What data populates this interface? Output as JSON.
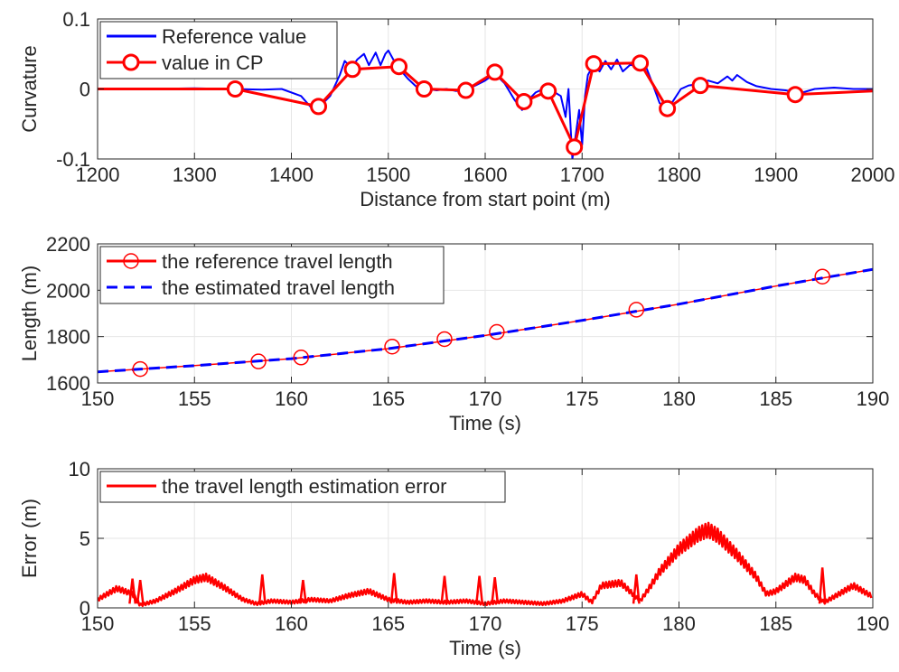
{
  "colors": {
    "blue": "#0000ff",
    "red": "#ff0000",
    "axis": "#262626",
    "grid": "#e6e6e6"
  },
  "chart_data": [
    {
      "type": "line",
      "xlabel": "Distance from start point (m)",
      "ylabel": "Curvature",
      "xlim": [
        1200,
        2000
      ],
      "ylim": [
        -0.1,
        0.1
      ],
      "xticks": [
        1200,
        1300,
        1400,
        1500,
        1600,
        1700,
        1800,
        1900,
        2000
      ],
      "yticks": [
        -0.1,
        0,
        0.1
      ],
      "ytick_labels": [
        "-0.1",
        "0",
        "0.1"
      ],
      "grid": true,
      "legend": "top-left",
      "series": [
        {
          "name": "Reference value",
          "color": "#0000ff",
          "style": "solid",
          "points": [
            [
              1200,
              0.0
            ],
            [
              1250,
              0.0
            ],
            [
              1300,
              0.001
            ],
            [
              1340,
              0.0
            ],
            [
              1370,
              -0.001
            ],
            [
              1390,
              0.0
            ],
            [
              1410,
              -0.01
            ],
            [
              1420,
              -0.026
            ],
            [
              1430,
              -0.024
            ],
            [
              1440,
              -0.01
            ],
            [
              1450,
              0.02
            ],
            [
              1455,
              0.04
            ],
            [
              1462,
              0.03
            ],
            [
              1468,
              0.042
            ],
            [
              1475,
              0.05
            ],
            [
              1480,
              0.034
            ],
            [
              1487,
              0.052
            ],
            [
              1492,
              0.034
            ],
            [
              1497,
              0.05
            ],
            [
              1500,
              0.055
            ],
            [
              1506,
              0.04
            ],
            [
              1512,
              0.028
            ],
            [
              1520,
              0.015
            ],
            [
              1530,
              0.002
            ],
            [
              1540,
              0.0
            ],
            [
              1550,
              -0.002
            ],
            [
              1560,
              0.0
            ],
            [
              1570,
              -0.003
            ],
            [
              1580,
              -0.001
            ],
            [
              1590,
              0.005
            ],
            [
              1600,
              0.012
            ],
            [
              1610,
              0.022
            ],
            [
              1620,
              0.008
            ],
            [
              1630,
              -0.015
            ],
            [
              1638,
              -0.03
            ],
            [
              1645,
              -0.015
            ],
            [
              1652,
              -0.005
            ],
            [
              1660,
              0.0
            ],
            [
              1665,
              -0.003
            ],
            [
              1672,
              -0.005
            ],
            [
              1678,
              -0.01
            ],
            [
              1683,
              -0.04
            ],
            [
              1686,
              0.0
            ],
            [
              1690,
              -0.1
            ],
            [
              1694,
              -0.06
            ],
            [
              1697,
              -0.03
            ],
            [
              1700,
              -0.08
            ],
            [
              1703,
              -0.01
            ],
            [
              1706,
              0.02
            ],
            [
              1712,
              0.035
            ],
            [
              1718,
              0.025
            ],
            [
              1724,
              0.04
            ],
            [
              1730,
              0.028
            ],
            [
              1736,
              0.042
            ],
            [
              1742,
              0.025
            ],
            [
              1750,
              0.035
            ],
            [
              1758,
              0.03
            ],
            [
              1765,
              0.035
            ],
            [
              1772,
              0.01
            ],
            [
              1780,
              -0.02
            ],
            [
              1788,
              -0.03
            ],
            [
              1795,
              -0.015
            ],
            [
              1802,
              0.0
            ],
            [
              1810,
              0.005
            ],
            [
              1820,
              0.007
            ],
            [
              1830,
              0.012
            ],
            [
              1840,
              0.008
            ],
            [
              1850,
              0.018
            ],
            [
              1855,
              0.012
            ],
            [
              1860,
              0.02
            ],
            [
              1870,
              0.01
            ],
            [
              1880,
              0.004
            ],
            [
              1895,
              0.0
            ],
            [
              1910,
              -0.002
            ],
            [
              1925,
              -0.006
            ],
            [
              1940,
              0.0
            ],
            [
              1960,
              0.002
            ],
            [
              1980,
              0.0
            ],
            [
              2000,
              0.0
            ]
          ]
        },
        {
          "name": "value in CP",
          "color": "#ff0000",
          "style": "solid",
          "marker": "circle",
          "points": [
            [
              1200,
              0.0
            ],
            [
              1342,
              0.0
            ],
            [
              1428,
              -0.025
            ],
            [
              1463,
              0.028
            ],
            [
              1511,
              0.032
            ],
            [
              1537,
              0.0
            ],
            [
              1580,
              -0.002
            ],
            [
              1610,
              0.024
            ],
            [
              1640,
              -0.018
            ],
            [
              1665,
              -0.003
            ],
            [
              1692,
              -0.083
            ],
            [
              1712,
              0.036
            ],
            [
              1760,
              0.037
            ],
            [
              1788,
              -0.028
            ],
            [
              1822,
              0.005
            ],
            [
              1920,
              -0.008
            ],
            [
              2000,
              -0.003
            ]
          ],
          "marker_x": [
            1342,
            1428,
            1463,
            1511,
            1537,
            1580,
            1610,
            1640,
            1665,
            1692,
            1712,
            1760,
            1788,
            1822,
            1920
          ]
        }
      ]
    },
    {
      "type": "line",
      "xlabel": "Time (s)",
      "ylabel": "Length (m)",
      "xlim": [
        150,
        190
      ],
      "ylim": [
        1600,
        2200
      ],
      "xticks": [
        150,
        155,
        160,
        165,
        170,
        175,
        180,
        185,
        190
      ],
      "yticks": [
        1600,
        1800,
        2000,
        2200
      ],
      "ytick_labels": [
        "1600",
        "1800",
        "2000",
        "2200"
      ],
      "grid": true,
      "legend": "top-left",
      "series": [
        {
          "name": "the reference travel length",
          "color": "#ff0000",
          "style": "solid",
          "marker": "circle",
          "points": [
            [
              150,
              1648
            ],
            [
              155,
              1675
            ],
            [
              160,
              1705
            ],
            [
              165,
              1748
            ],
            [
              170,
              1805
            ],
            [
              175,
              1870
            ],
            [
              180,
              1940
            ],
            [
              185,
              2018
            ],
            [
              190,
              2090
            ]
          ],
          "markers": [
            [
              152.2,
              1660
            ],
            [
              158.3,
              1693
            ],
            [
              160.5,
              1710
            ],
            [
              165.2,
              1757
            ],
            [
              167.9,
              1789
            ],
            [
              170.6,
              1820
            ],
            [
              177.8,
              1916
            ],
            [
              187.4,
              2059
            ]
          ]
        },
        {
          "name": "the estimated travel length",
          "color": "#0000ff",
          "style": "dashed",
          "points": [
            [
              150,
              1648
            ],
            [
              155,
              1675
            ],
            [
              160,
              1705
            ],
            [
              165,
              1748
            ],
            [
              170,
              1805
            ],
            [
              175,
              1870
            ],
            [
              180,
              1940
            ],
            [
              185,
              2018
            ],
            [
              190,
              2090
            ]
          ]
        }
      ]
    },
    {
      "type": "line",
      "xlabel": "Time (s)",
      "ylabel": "Error (m)",
      "xlim": [
        150,
        190
      ],
      "ylim": [
        0,
        10
      ],
      "xticks": [
        150,
        155,
        160,
        165,
        170,
        175,
        180,
        185,
        190
      ],
      "yticks": [
        0,
        5,
        10
      ],
      "ytick_labels": [
        "0",
        "5",
        "10"
      ],
      "grid": true,
      "legend": "top-left",
      "series": [
        {
          "name": "the travel length estimation error",
          "color": "#ff0000",
          "style": "solid",
          "envelope": [
            [
              150,
              0.6
            ],
            [
              151,
              1.4
            ],
            [
              151.8,
              1.0
            ],
            [
              152.2,
              0.2
            ],
            [
              153,
              0.5
            ],
            [
              154,
              1.2
            ],
            [
              155,
              2.0
            ],
            [
              155.6,
              2.2
            ],
            [
              156.5,
              1.5
            ],
            [
              157.5,
              0.6
            ],
            [
              158.2,
              0.3
            ],
            [
              159,
              0.5
            ],
            [
              160,
              0.4
            ],
            [
              161,
              0.6
            ],
            [
              162,
              0.5
            ],
            [
              163,
              0.9
            ],
            [
              164,
              1.2
            ],
            [
              165,
              0.6
            ],
            [
              166,
              0.4
            ],
            [
              167,
              0.5
            ],
            [
              168,
              0.4
            ],
            [
              169,
              0.5
            ],
            [
              170,
              0.3
            ],
            [
              171,
              0.5
            ],
            [
              172,
              0.4
            ],
            [
              173,
              0.3
            ],
            [
              174,
              0.5
            ],
            [
              175,
              1.0
            ],
            [
              175.5,
              0.4
            ],
            [
              176,
              1.6
            ],
            [
              177,
              1.8
            ],
            [
              178,
              0.5
            ],
            [
              178.5,
              1.5
            ],
            [
              179,
              2.6
            ],
            [
              180,
              4.2
            ],
            [
              181,
              5.3
            ],
            [
              181.5,
              5.6
            ],
            [
              182,
              5.2
            ],
            [
              183,
              3.8
            ],
            [
              184,
              2.2
            ],
            [
              184.5,
              1.0
            ],
            [
              185,
              1.2
            ],
            [
              186,
              2.2
            ],
            [
              186.5,
              2.0
            ],
            [
              187,
              1.0
            ],
            [
              187.5,
              0.4
            ],
            [
              188,
              0.8
            ],
            [
              189,
              1.6
            ],
            [
              190,
              0.8
            ]
          ],
          "spikes": [
            [
              151.8,
              2.1
            ],
            [
              152.2,
              2.0
            ],
            [
              158.5,
              2.4
            ],
            [
              160.6,
              2.0
            ],
            [
              165.3,
              2.5
            ],
            [
              167.9,
              2.3
            ],
            [
              169.7,
              2.3
            ],
            [
              170.5,
              2.2
            ],
            [
              177.8,
              2.4
            ],
            [
              187.4,
              2.9
            ]
          ]
        }
      ]
    }
  ]
}
